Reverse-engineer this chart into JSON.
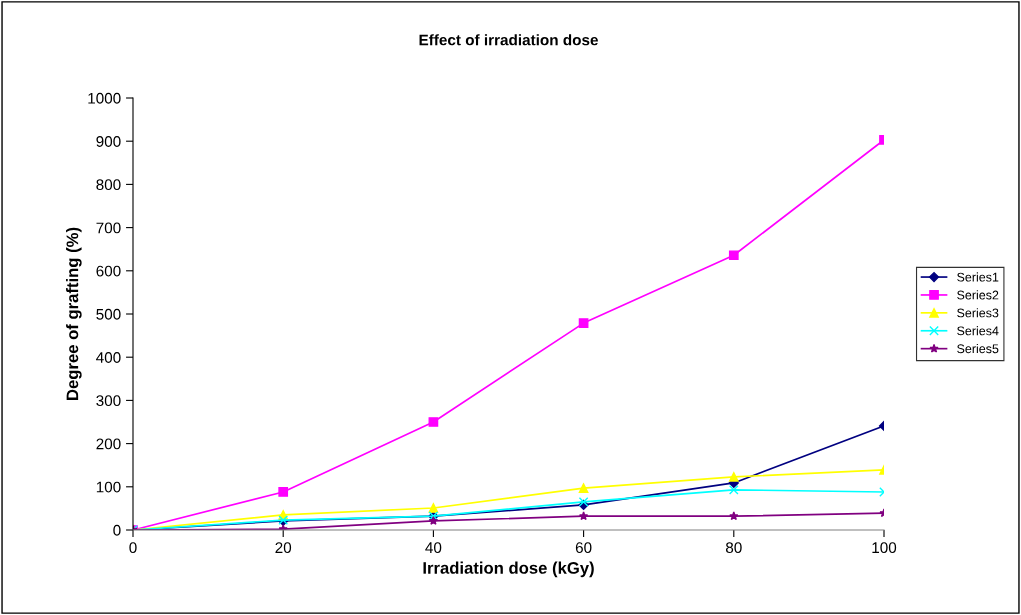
{
  "chart_data": {
    "type": "line",
    "title": "Effect of irradiation dose",
    "xlabel": "Irradiation dose (kGy)",
    "ylabel": "Degree of grafting (%)",
    "x": [
      0,
      20,
      40,
      60,
      80,
      100
    ],
    "series": [
      {
        "name": "Series1",
        "color": "#000080",
        "marker": "diamond",
        "values": [
          0,
          21,
          32,
          58,
          109,
          241
        ]
      },
      {
        "name": "Series2",
        "color": "#ff00ff",
        "marker": "square",
        "values": [
          0,
          88,
          250,
          479,
          636,
          903
        ]
      },
      {
        "name": "Series3",
        "color": "#ffff00",
        "marker": "triangle",
        "values": [
          0,
          35,
          51,
          97,
          123,
          139
        ]
      },
      {
        "name": "Series4",
        "color": "#00ffff",
        "marker": "cross",
        "values": [
          0,
          23,
          32,
          65,
          93,
          88
        ]
      },
      {
        "name": "Series5",
        "color": "#800080",
        "marker": "star",
        "values": [
          0,
          2,
          21,
          32,
          32,
          39
        ]
      }
    ],
    "xlim": [
      0,
      100
    ],
    "xticks": [
      0,
      20,
      40,
      60,
      80,
      100
    ],
    "ylim": [
      0,
      1000
    ],
    "yticks": [
      0,
      100,
      200,
      300,
      400,
      500,
      600,
      700,
      800,
      900,
      1000
    ],
    "grid": false,
    "legend": "right",
    "line_style": "solid"
  }
}
